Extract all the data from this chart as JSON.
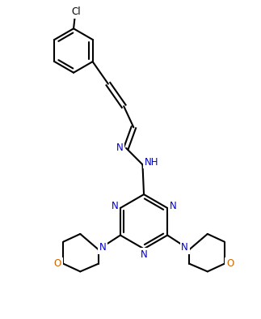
{
  "bg_color": "#ffffff",
  "line_color": "#000000",
  "text_color": "#000000",
  "n_color": "#0000cd",
  "o_color": "#cc6600",
  "cl_color": "#000000",
  "line_width": 1.5,
  "font_size": 8.5,
  "figsize": [
    3.23,
    3.94
  ],
  "dpi": 100,
  "xlim": [
    0,
    10
  ],
  "ylim": [
    0,
    12.2
  ]
}
